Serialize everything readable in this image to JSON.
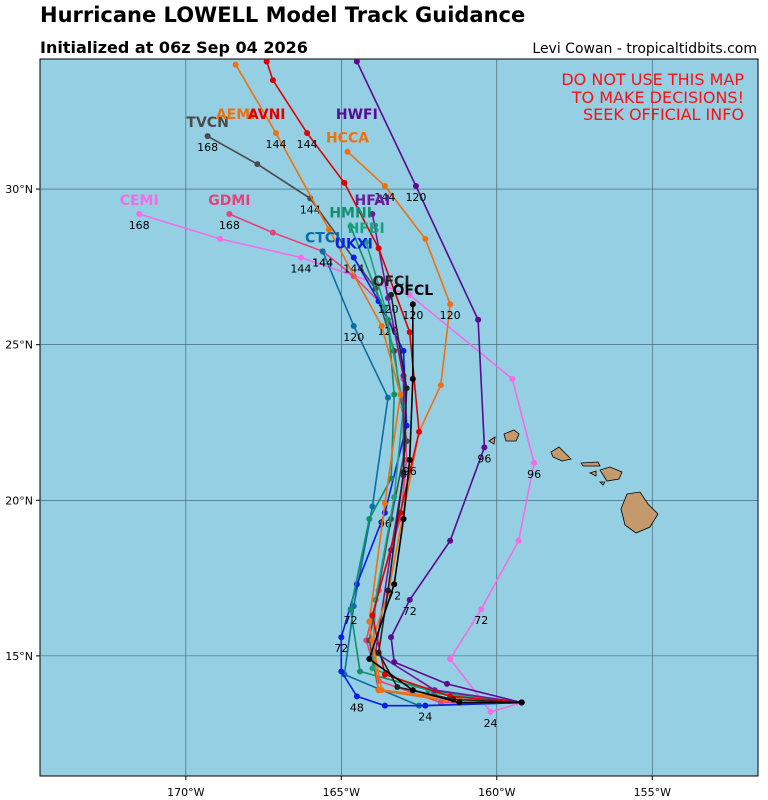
{
  "header": {
    "title": "Hurricane LOWELL Model Track Guidance",
    "subtitle": "Initialized at 06z Sep 04 2026",
    "credit": "Levi Cowan - tropicaltidbits.com"
  },
  "warning": [
    "DO NOT USE THIS MAP",
    "TO MAKE DECISIONS!",
    "SEEK OFFICIAL INFO"
  ],
  "map": {
    "xlim": [
      -174.69,
      -151.6
    ],
    "ylim": [
      11.14,
      34.18
    ],
    "xticks": [
      {
        "value": -170,
        "label": "170°W"
      },
      {
        "value": -165,
        "label": "165°W"
      },
      {
        "value": -160,
        "label": "160°W"
      },
      {
        "value": -155,
        "label": "155°W"
      }
    ],
    "yticks": [
      {
        "value": 15,
        "label": "15°N"
      },
      {
        "value": 20,
        "label": "20°N"
      },
      {
        "value": 25,
        "label": "25°N"
      },
      {
        "value": 30,
        "label": "30°N"
      }
    ],
    "grid": true
  },
  "tracks": [
    {
      "name": "CEMI",
      "color": "#f26de6",
      "points": [
        {
          "lon": -159.2,
          "lat": 13.5
        },
        {
          "lon": -160.2,
          "lat": 13.2,
          "hour": 24
        },
        {
          "lon": -161.5,
          "lat": 14.9
        },
        {
          "lon": -160.5,
          "lat": 16.5,
          "hour": 72
        },
        {
          "lon": -159.3,
          "lat": 18.7
        },
        {
          "lon": -158.8,
          "lat": 21.2,
          "hour": 96
        },
        {
          "lon": -159.5,
          "lat": 23.9
        },
        {
          "lon": -162.8,
          "lat": 26.6
        },
        {
          "lon": -166.3,
          "lat": 27.8,
          "hour": 144
        },
        {
          "lon": -168.9,
          "lat": 28.4
        },
        {
          "lon": -171.5,
          "lat": 29.2,
          "hour": 168
        }
      ]
    },
    {
      "name": "GDMI",
      "color": "#e8407a",
      "points": [
        {
          "lon": -159.2,
          "lat": 13.5
        },
        {
          "lon": -161.8,
          "lat": 13.5
        },
        {
          "lon": -163.8,
          "lat": 14.2
        },
        {
          "lon": -164.2,
          "lat": 15.5
        },
        {
          "lon": -163.8,
          "lat": 17.1
        },
        {
          "lon": -163.1,
          "lat": 19.4
        },
        {
          "lon": -162.9,
          "lat": 21.3
        },
        {
          "lon": -163.0,
          "lat": 23.9
        },
        {
          "lon": -163.3,
          "lat": 25.5
        },
        {
          "lon": -163.8,
          "lat": 26.4
        },
        {
          "lon": -164.6,
          "lat": 27.2
        },
        {
          "lon": -165.6,
          "lat": 28.0,
          "hour": 144
        },
        {
          "lon": -167.2,
          "lat": 28.6
        },
        {
          "lon": -168.6,
          "lat": 29.2,
          "hour": 168
        }
      ]
    },
    {
      "name": "TVCN",
      "color": "#4a4a4a",
      "points": [
        {
          "lon": -159.2,
          "lat": 13.5
        },
        {
          "lon": -161.2,
          "lat": 13.5
        },
        {
          "lon": -163.8,
          "lat": 13.9
        },
        {
          "lon": -164.1,
          "lat": 15.5
        },
        {
          "lon": -163.4,
          "lat": 19.4
        },
        {
          "lon": -162.9,
          "lat": 21.9
        },
        {
          "lon": -163.3,
          "lat": 24.8
        },
        {
          "lon": -163.9,
          "lat": 26.8
        },
        {
          "lon": -166.0,
          "lat": 29.7,
          "hour": 144
        },
        {
          "lon": -167.7,
          "lat": 30.8
        },
        {
          "lon": -169.3,
          "lat": 31.7,
          "hour": 168
        }
      ]
    },
    {
      "name": "CTCI",
      "color": "#0b6ea5",
      "points": [
        {
          "lon": -159.2,
          "lat": 13.5
        },
        {
          "lon": -162.5,
          "lat": 13.4
        },
        {
          "lon": -164.9,
          "lat": 14.4
        },
        {
          "lon": -164.6,
          "lat": 16.6
        },
        {
          "lon": -164.0,
          "lat": 19.8
        },
        {
          "lon": -163.5,
          "lat": 23.3
        },
        {
          "lon": -164.6,
          "lat": 25.6,
          "hour": 120
        },
        {
          "lon": -165.6,
          "lat": 28.0,
          "hour": 144
        }
      ]
    },
    {
      "name": "UKXI",
      "color": "#0a1ee6",
      "points": [
        {
          "lon": -159.2,
          "lat": 13.5
        },
        {
          "lon": -162.3,
          "lat": 13.4,
          "hour": 24
        },
        {
          "lon": -163.6,
          "lat": 13.4
        },
        {
          "lon": -164.5,
          "lat": 13.7,
          "hour": 48
        },
        {
          "lon": -165.0,
          "lat": 14.5
        },
        {
          "lon": -165.0,
          "lat": 15.6,
          "hour": 72
        },
        {
          "lon": -164.5,
          "lat": 17.3
        },
        {
          "lon": -163.6,
          "lat": 19.6,
          "hour": 96
        },
        {
          "lon": -162.9,
          "lat": 22.4
        },
        {
          "lon": -163.0,
          "lat": 24.8
        },
        {
          "lon": -163.8,
          "lat": 26.4
        },
        {
          "lon": -164.6,
          "lat": 27.8,
          "hour": 144
        }
      ]
    },
    {
      "name": "HMNI",
      "color": "#10906a",
      "points": [
        {
          "lon": -159.2,
          "lat": 13.5
        },
        {
          "lon": -162.2,
          "lat": 13.9
        },
        {
          "lon": -164.4,
          "lat": 14.5
        },
        {
          "lon": -164.7,
          "lat": 16.5,
          "hour": 72
        },
        {
          "lon": -164.1,
          "lat": 19.4
        },
        {
          "lon": -163.4,
          "lat": 20.7
        },
        {
          "lon": -163.3,
          "lat": 23.4
        },
        {
          "lon": -163.5,
          "lat": 25.8,
          "hour": 120
        },
        {
          "lon": -164.7,
          "lat": 28.8
        }
      ]
    },
    {
      "name": "HFBI",
      "color": "#17a37e",
      "points": [
        {
          "lon": -159.2,
          "lat": 13.5
        },
        {
          "lon": -162.0,
          "lat": 13.8
        },
        {
          "lon": -164.0,
          "lat": 14.6
        },
        {
          "lon": -163.9,
          "lat": 16.8
        },
        {
          "lon": -163.3,
          "lat": 20.1
        },
        {
          "lon": -163.0,
          "lat": 23.0
        },
        {
          "lon": -163.6,
          "lat": 26.2
        },
        {
          "lon": -164.2,
          "lat": 28.3
        }
      ]
    },
    {
      "name": "HFAI",
      "color": "#6b1b9c",
      "points": [
        {
          "lon": -159.2,
          "lat": 13.5
        },
        {
          "lon": -162.0,
          "lat": 13.9
        },
        {
          "lon": -163.9,
          "lat": 15.1
        },
        {
          "lon": -163.4,
          "lat": 18.4
        },
        {
          "lon": -163.0,
          "lat": 20.8
        },
        {
          "lon": -163.0,
          "lat": 24.0
        },
        {
          "lon": -163.5,
          "lat": 26.5,
          "hour": 120
        },
        {
          "lon": -164.0,
          "lat": 29.2
        }
      ]
    },
    {
      "name": "HCCA",
      "color": "#f07010",
      "points": [
        {
          "lon": -159.2,
          "lat": 13.5
        },
        {
          "lon": -161.2,
          "lat": 13.6
        },
        {
          "lon": -163.7,
          "lat": 13.9
        },
        {
          "lon": -164.0,
          "lat": 15.5
        },
        {
          "lon": -163.5,
          "lat": 17.0
        },
        {
          "lon": -162.5,
          "lat": 22.2
        },
        {
          "lon": -161.8,
          "lat": 23.7
        },
        {
          "lon": -161.5,
          "lat": 26.3,
          "hour": 120
        },
        {
          "lon": -162.3,
          "lat": 28.4
        },
        {
          "lon": -163.6,
          "lat": 30.1,
          "hour": 144
        },
        {
          "lon": -164.8,
          "lat": 31.2
        }
      ]
    },
    {
      "name": "AEMI",
      "color": "#f0700a",
      "points": [
        {
          "lon": -159.2,
          "lat": 13.5
        },
        {
          "lon": -161.2,
          "lat": 13.5
        },
        {
          "lon": -163.8,
          "lat": 13.9
        },
        {
          "lon": -164.1,
          "lat": 16.1
        },
        {
          "lon": -163.6,
          "lat": 19.9
        },
        {
          "lon": -163.1,
          "lat": 23.4
        },
        {
          "lon": -163.7,
          "lat": 25.6
        },
        {
          "lon": -165.4,
          "lat": 28.7
        },
        {
          "lon": -167.1,
          "lat": 31.8,
          "hour": 144
        },
        {
          "lon": -168.4,
          "lat": 34.0
        }
      ]
    },
    {
      "name": "AVNI",
      "color": "#e00000",
      "points": [
        {
          "lon": -159.2,
          "lat": 13.5
        },
        {
          "lon": -161.5,
          "lat": 13.7
        },
        {
          "lon": -163.6,
          "lat": 14.4
        },
        {
          "lon": -164.0,
          "lat": 16.3
        },
        {
          "lon": -163.1,
          "lat": 19.6
        },
        {
          "lon": -162.5,
          "lat": 22.2
        },
        {
          "lon": -162.8,
          "lat": 25.4
        },
        {
          "lon": -163.8,
          "lat": 28.1
        },
        {
          "lon": -164.9,
          "lat": 30.2
        },
        {
          "lon": -166.1,
          "lat": 31.8,
          "hour": 144
        },
        {
          "lon": -167.2,
          "lat": 33.5
        },
        {
          "lon": -167.4,
          "lat": 34.1
        }
      ]
    },
    {
      "name": "HWFI",
      "color": "#5b0a91",
      "points": [
        {
          "lon": -159.2,
          "lat": 13.5
        },
        {
          "lon": -161.6,
          "lat": 14.1
        },
        {
          "lon": -163.3,
          "lat": 14.8
        },
        {
          "lon": -163.4,
          "lat": 15.6
        },
        {
          "lon": -162.8,
          "lat": 16.8,
          "hour": 72
        },
        {
          "lon": -161.5,
          "lat": 18.7
        },
        {
          "lon": -160.4,
          "lat": 21.7,
          "hour": 96
        },
        {
          "lon": -160.6,
          "lat": 25.8
        },
        {
          "lon": -162.6,
          "lat": 30.1,
          "hour": 120
        },
        {
          "lon": -164.5,
          "lat": 34.1
        }
      ]
    },
    {
      "name": "OFCI",
      "color": "#222222",
      "points": [
        {
          "lon": -159.2,
          "lat": 13.5
        },
        {
          "lon": -161.4,
          "lat": 13.6
        },
        {
          "lon": -163.2,
          "lat": 14.0
        },
        {
          "lon": -163.8,
          "lat": 15.1
        },
        {
          "lon": -163.5,
          "lat": 17.1
        },
        {
          "lon": -163.0,
          "lat": 20.9
        },
        {
          "lon": -162.9,
          "lat": 23.6
        },
        {
          "lon": -163.4,
          "lat": 26.6
        }
      ]
    },
    {
      "name": "OFCL",
      "color": "#000000",
      "points": [
        {
          "lon": -159.2,
          "lat": 13.5
        },
        {
          "lon": -161.2,
          "lat": 13.5
        },
        {
          "lon": -162.7,
          "lat": 13.9
        },
        {
          "lon": -164.1,
          "lat": 14.9
        },
        {
          "lon": -163.3,
          "lat": 17.3,
          "hour": 72
        },
        {
          "lon": -163.0,
          "lat": 19.4
        },
        {
          "lon": -162.8,
          "lat": 21.3,
          "hour": 96
        },
        {
          "lon": -162.7,
          "lat": 23.9
        },
        {
          "lon": -162.7,
          "lat": 26.3,
          "hour": 120
        }
      ]
    }
  ]
}
